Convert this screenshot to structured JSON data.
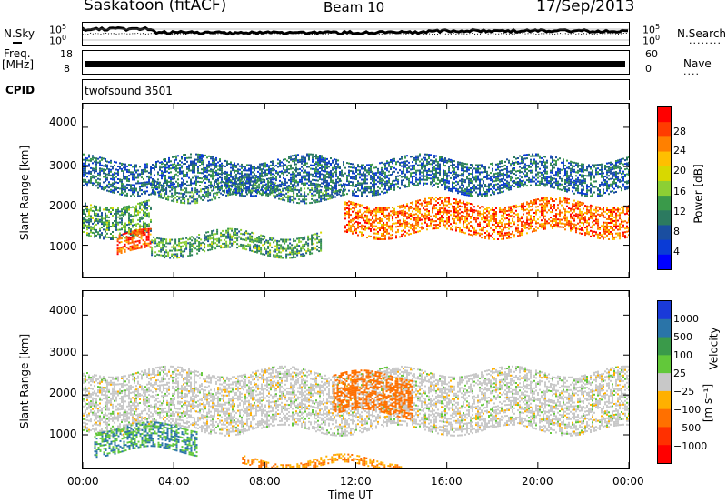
{
  "header": {
    "title": "Saskatoon (fitACF)",
    "beam": "Beam 10",
    "date": "17/Sep/2013"
  },
  "left_labels": {
    "nsky": "N.Sky",
    "freq_line1": "Freq.",
    "freq_line2": "[MHz]",
    "cpid": "CPID"
  },
  "right_labels": {
    "nsearch": "N.Search",
    "nave": "Nave",
    "dots": "........"
  },
  "noise_panel": {
    "left_ticks": [
      "10^5",
      "10^0"
    ],
    "right_ticks": [
      "10^5",
      "10^0"
    ]
  },
  "freq_panel": {
    "left_ticks": [
      "18",
      "8"
    ],
    "right_ticks": [
      "60",
      "0"
    ]
  },
  "cpid_panel": {
    "program": "twofsound 3501"
  },
  "axes": {
    "ylabel": "Slant Range [km]",
    "xlabel": "Time UT",
    "y_ticks": [
      "4000",
      "3000",
      "2000",
      "1000"
    ],
    "x_ticks": [
      "00:00",
      "04:00",
      "08:00",
      "12:00",
      "16:00",
      "20:00",
      "00:00"
    ]
  },
  "power_colorbar": {
    "label": "Power [dB]",
    "ticks": [
      "28",
      "24",
      "20",
      "16",
      "12",
      "8",
      "4"
    ],
    "colors": [
      "#ff0000",
      "#ff3c00",
      "#ff8000",
      "#ffbf00",
      "#d8d800",
      "#8ccf34",
      "#3a9a4a",
      "#2c7a60",
      "#1a4ea0",
      "#0a3bd6",
      "#0000ff"
    ]
  },
  "velocity_colorbar": {
    "label_main": "Velocity",
    "label_unit": "[m s⁻¹]",
    "ticks": [
      "1000",
      "500",
      "100",
      "25",
      "−25",
      "−100",
      "−500",
      "−1000"
    ],
    "colors": [
      "#1a3ad8",
      "#2a74a8",
      "#3a9a4a",
      "#62c83a",
      "#c8c8c8",
      "#ffb000",
      "#ff7000",
      "#ff3000",
      "#ff0000"
    ]
  },
  "chart_data": {
    "type": "heatmap",
    "title": "Saskatoon (fitACF)",
    "subtitle": "Beam 10",
    "date": "17/Sep/2013",
    "xlabel": "Time UT",
    "ylabel": "Slant Range [km]",
    "xlim": [
      "00:00",
      "24:00"
    ],
    "ylim": [
      180,
      4600
    ],
    "panels": [
      {
        "name": "Power",
        "unit": "dB",
        "color_range": [
          0,
          30
        ],
        "bands": [
          {
            "t_start": 0.0,
            "t_end": 3.0,
            "range_start": 1300,
            "range_end": 2100,
            "value": 12
          },
          {
            "t_start": 1.5,
            "t_end": 3.0,
            "range_start": 800,
            "range_end": 1300,
            "value": 26
          },
          {
            "t_start": 3.0,
            "t_end": 11.5,
            "range_start": 2200,
            "range_end": 2600,
            "value": 10
          },
          {
            "t_start": 3.0,
            "t_end": 10.5,
            "range_start": 800,
            "range_end": 1300,
            "value": 12
          },
          {
            "t_start": 11.5,
            "t_end": 24.0,
            "range_start": 1300,
            "range_end": 2100,
            "value": 24
          },
          {
            "t_start": 0.0,
            "t_end": 24.0,
            "range_start": 2400,
            "range_end": 3200,
            "value": 8
          }
        ]
      },
      {
        "name": "Velocity",
        "unit": "m s^-1",
        "color_range": [
          -1000,
          1000
        ],
        "bands": [
          {
            "t_start": 0.0,
            "t_end": 24.0,
            "range_start": 1100,
            "range_end": 2600,
            "value": 0
          },
          {
            "t_start": 0.5,
            "t_end": 5.0,
            "range_start": 600,
            "range_end": 1200,
            "value": 100
          },
          {
            "t_start": 11.0,
            "t_end": 14.5,
            "range_start": 1500,
            "range_end": 2500,
            "value": -300
          },
          {
            "t_start": 7.0,
            "t_end": 14.0,
            "range_start": 200,
            "range_end": 400,
            "value": -100
          }
        ]
      }
    ]
  }
}
